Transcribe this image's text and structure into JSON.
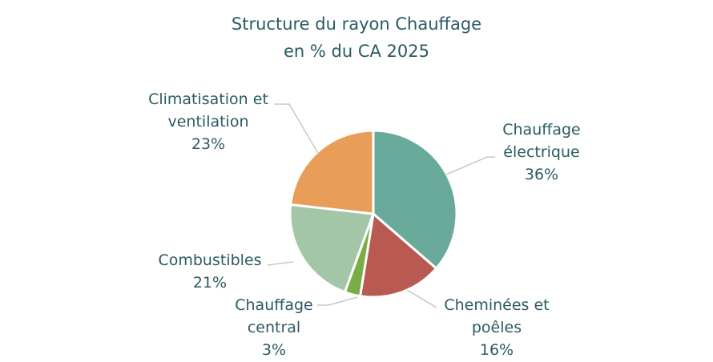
{
  "chart_data": {
    "type": "pie",
    "title": "Structure du rayon Chauffage",
    "subtitle": "en % du CA 2025",
    "categories": [
      "Chauffage électrique",
      "Cheminées et poêles",
      "Chauffage central",
      "Combustibles",
      "Climatisation et ventilation"
    ],
    "values": [
      36,
      16,
      3,
      21,
      23
    ],
    "value_labels": [
      "36%",
      "16%",
      "3%",
      "21%",
      "23%"
    ],
    "colors": [
      "#6aaa9a",
      "#b85a52",
      "#79ad45",
      "#a3c6a6",
      "#e89d58"
    ]
  }
}
